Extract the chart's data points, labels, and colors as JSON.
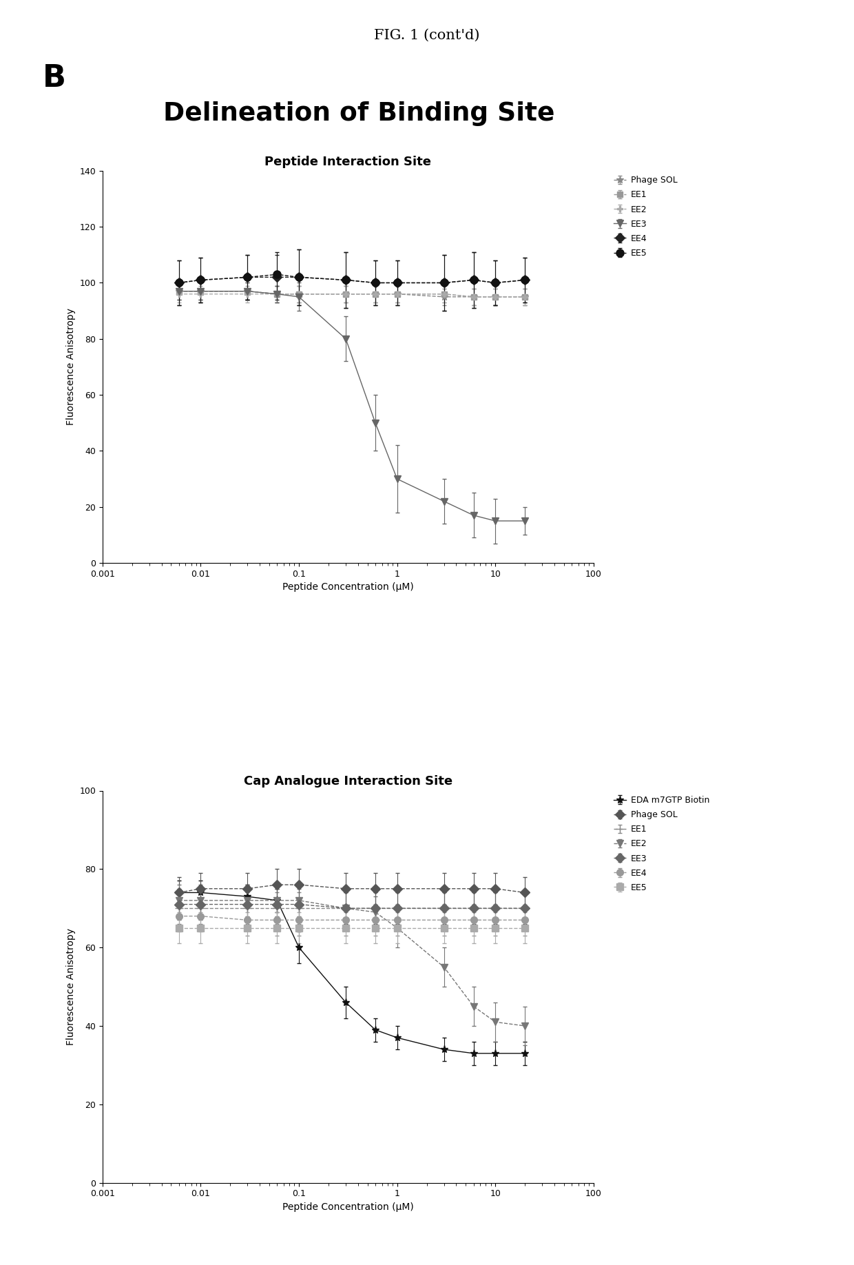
{
  "fig_title": "FIG. 1 (cont'd)",
  "panel_label": "B",
  "section_title": "Delineation of Binding Site",
  "plot1_title": "Peptide Interaction Site",
  "plot2_title": "Cap Analogue Interaction Site",
  "xlabel": "Peptide Concentration (μM)",
  "ylabel": "Fluorescence Anisotropy",
  "plot1_ylim": [
    0,
    140
  ],
  "plot2_ylim": [
    0,
    100
  ],
  "plot1_yticks": [
    0,
    20,
    40,
    60,
    80,
    100,
    120,
    140
  ],
  "plot2_yticks": [
    0,
    20,
    40,
    60,
    80,
    100
  ],
  "plot1": {
    "Phage SOL": {
      "x": [
        0.006,
        0.01,
        0.03,
        0.06,
        0.1,
        0.3,
        0.6,
        1.0,
        3.0,
        6.0,
        10.0,
        20.0
      ],
      "y": [
        97,
        97,
        97,
        96,
        96,
        96,
        96,
        96,
        95,
        95,
        95,
        95
      ],
      "yerr": [
        3,
        3,
        3,
        3,
        3,
        3,
        3,
        3,
        3,
        3,
        3,
        3
      ],
      "color": "#888888",
      "marker": "*",
      "markersize": 7,
      "linestyle": "--"
    },
    "EE1": {
      "x": [
        0.006,
        0.01,
        0.03,
        0.06,
        0.1,
        0.3,
        0.6,
        1.0,
        3.0,
        6.0,
        10.0,
        20.0
      ],
      "y": [
        97,
        97,
        97,
        96,
        96,
        96,
        96,
        96,
        96,
        95,
        95,
        95
      ],
      "yerr": [
        3,
        3,
        3,
        3,
        3,
        3,
        3,
        3,
        3,
        3,
        3,
        3
      ],
      "color": "#999999",
      "marker": "s",
      "markersize": 6,
      "linestyle": "--"
    },
    "EE2": {
      "x": [
        0.006,
        0.01,
        0.03,
        0.06,
        0.1,
        0.3,
        0.6,
        1.0,
        3.0,
        6.0,
        10.0,
        20.0
      ],
      "y": [
        96,
        96,
        96,
        96,
        96,
        96,
        96,
        96,
        96,
        95,
        95,
        95
      ],
      "yerr": [
        3,
        3,
        3,
        3,
        3,
        3,
        3,
        3,
        3,
        3,
        3,
        3
      ],
      "color": "#aaaaaa",
      "marker": "P",
      "markersize": 6,
      "linestyle": "--"
    },
    "EE3": {
      "x": [
        0.006,
        0.01,
        0.03,
        0.06,
        0.1,
        0.3,
        0.6,
        1.0,
        3.0,
        6.0,
        10.0,
        20.0
      ],
      "y": [
        97,
        97,
        97,
        96,
        95,
        80,
        50,
        30,
        22,
        17,
        15,
        15
      ],
      "yerr": [
        3,
        3,
        3,
        3,
        5,
        8,
        10,
        12,
        8,
        8,
        8,
        5
      ],
      "color": "#666666",
      "marker": "v",
      "markersize": 7,
      "linestyle": "-"
    },
    "EE4": {
      "x": [
        0.006,
        0.01,
        0.03,
        0.06,
        0.1,
        0.3,
        0.6,
        1.0,
        3.0,
        6.0,
        10.0,
        20.0
      ],
      "y": [
        100,
        101,
        102,
        102,
        102,
        101,
        100,
        100,
        100,
        101,
        100,
        101
      ],
      "yerr": [
        8,
        8,
        8,
        8,
        10,
        10,
        8,
        8,
        10,
        10,
        8,
        8
      ],
      "color": "#222222",
      "marker": "D",
      "markersize": 7,
      "linestyle": "--"
    },
    "EE5": {
      "x": [
        0.006,
        0.01,
        0.03,
        0.06,
        0.1,
        0.3,
        0.6,
        1.0,
        3.0,
        6.0,
        10.0,
        20.0
      ],
      "y": [
        100,
        101,
        102,
        103,
        102,
        101,
        100,
        100,
        100,
        101,
        100,
        101
      ],
      "yerr": [
        8,
        8,
        8,
        8,
        10,
        10,
        8,
        8,
        10,
        10,
        8,
        8
      ],
      "color": "#111111",
      "marker": "o",
      "markersize": 8,
      "linestyle": "--"
    }
  },
  "plot2": {
    "EDA m7GTP Biotin": {
      "x": [
        0.006,
        0.01,
        0.03,
        0.06,
        0.1,
        0.3,
        0.6,
        1.0,
        3.0,
        6.0,
        10.0,
        20.0
      ],
      "y": [
        74,
        74,
        73,
        72,
        60,
        46,
        39,
        37,
        34,
        33,
        33,
        33
      ],
      "yerr": [
        3,
        3,
        3,
        3,
        4,
        4,
        3,
        3,
        3,
        3,
        3,
        3
      ],
      "color": "#111111",
      "marker": "*",
      "markersize": 8,
      "linestyle": "-"
    },
    "Phage SOL": {
      "x": [
        0.006,
        0.01,
        0.03,
        0.06,
        0.1,
        0.3,
        0.6,
        1.0,
        3.0,
        6.0,
        10.0,
        20.0
      ],
      "y": [
        74,
        75,
        75,
        76,
        76,
        75,
        75,
        75,
        75,
        75,
        75,
        74
      ],
      "yerr": [
        4,
        4,
        4,
        4,
        4,
        4,
        4,
        4,
        4,
        4,
        4,
        4
      ],
      "color": "#555555",
      "marker": "D",
      "markersize": 7,
      "linestyle": "--"
    },
    "EE1": {
      "x": [
        0.006,
        0.01,
        0.03,
        0.06,
        0.1,
        0.3,
        0.6,
        1.0,
        3.0,
        6.0,
        10.0,
        20.0
      ],
      "y": [
        70,
        70,
        70,
        70,
        70,
        70,
        70,
        70,
        70,
        70,
        70,
        70
      ],
      "yerr": [
        4,
        4,
        4,
        4,
        4,
        4,
        4,
        4,
        4,
        4,
        4,
        4
      ],
      "color": "#888888",
      "marker": "+",
      "markersize": 8,
      "linestyle": "--"
    },
    "EE2": {
      "x": [
        0.006,
        0.01,
        0.03,
        0.06,
        0.1,
        0.3,
        0.6,
        1.0,
        3.0,
        6.0,
        10.0,
        20.0
      ],
      "y": [
        72,
        72,
        72,
        72,
        72,
        70,
        69,
        65,
        55,
        45,
        41,
        40
      ],
      "yerr": [
        4,
        4,
        4,
        4,
        4,
        4,
        4,
        5,
        5,
        5,
        5,
        5
      ],
      "color": "#777777",
      "marker": "v",
      "markersize": 7,
      "linestyle": "--"
    },
    "EE3": {
      "x": [
        0.006,
        0.01,
        0.03,
        0.06,
        0.1,
        0.3,
        0.6,
        1.0,
        3.0,
        6.0,
        10.0,
        20.0
      ],
      "y": [
        71,
        71,
        71,
        71,
        71,
        70,
        70,
        70,
        70,
        70,
        70,
        70
      ],
      "yerr": [
        4,
        4,
        4,
        4,
        4,
        4,
        4,
        4,
        4,
        4,
        4,
        4
      ],
      "color": "#666666",
      "marker": "D",
      "markersize": 7,
      "linestyle": "--"
    },
    "EE4": {
      "x": [
        0.006,
        0.01,
        0.03,
        0.06,
        0.1,
        0.3,
        0.6,
        1.0,
        3.0,
        6.0,
        10.0,
        20.0
      ],
      "y": [
        68,
        68,
        67,
        67,
        67,
        67,
        67,
        67,
        67,
        67,
        67,
        67
      ],
      "yerr": [
        4,
        4,
        4,
        4,
        4,
        4,
        4,
        4,
        4,
        4,
        4,
        4
      ],
      "color": "#999999",
      "marker": "o",
      "markersize": 7,
      "linestyle": "--"
    },
    "EE5": {
      "x": [
        0.006,
        0.01,
        0.03,
        0.06,
        0.1,
        0.3,
        0.6,
        1.0,
        3.0,
        6.0,
        10.0,
        20.0
      ],
      "y": [
        65,
        65,
        65,
        65,
        65,
        65,
        65,
        65,
        65,
        65,
        65,
        65
      ],
      "yerr": [
        4,
        4,
        4,
        4,
        4,
        4,
        4,
        4,
        4,
        4,
        4,
        4
      ],
      "color": "#aaaaaa",
      "marker": "s",
      "markersize": 7,
      "linestyle": "--"
    }
  }
}
